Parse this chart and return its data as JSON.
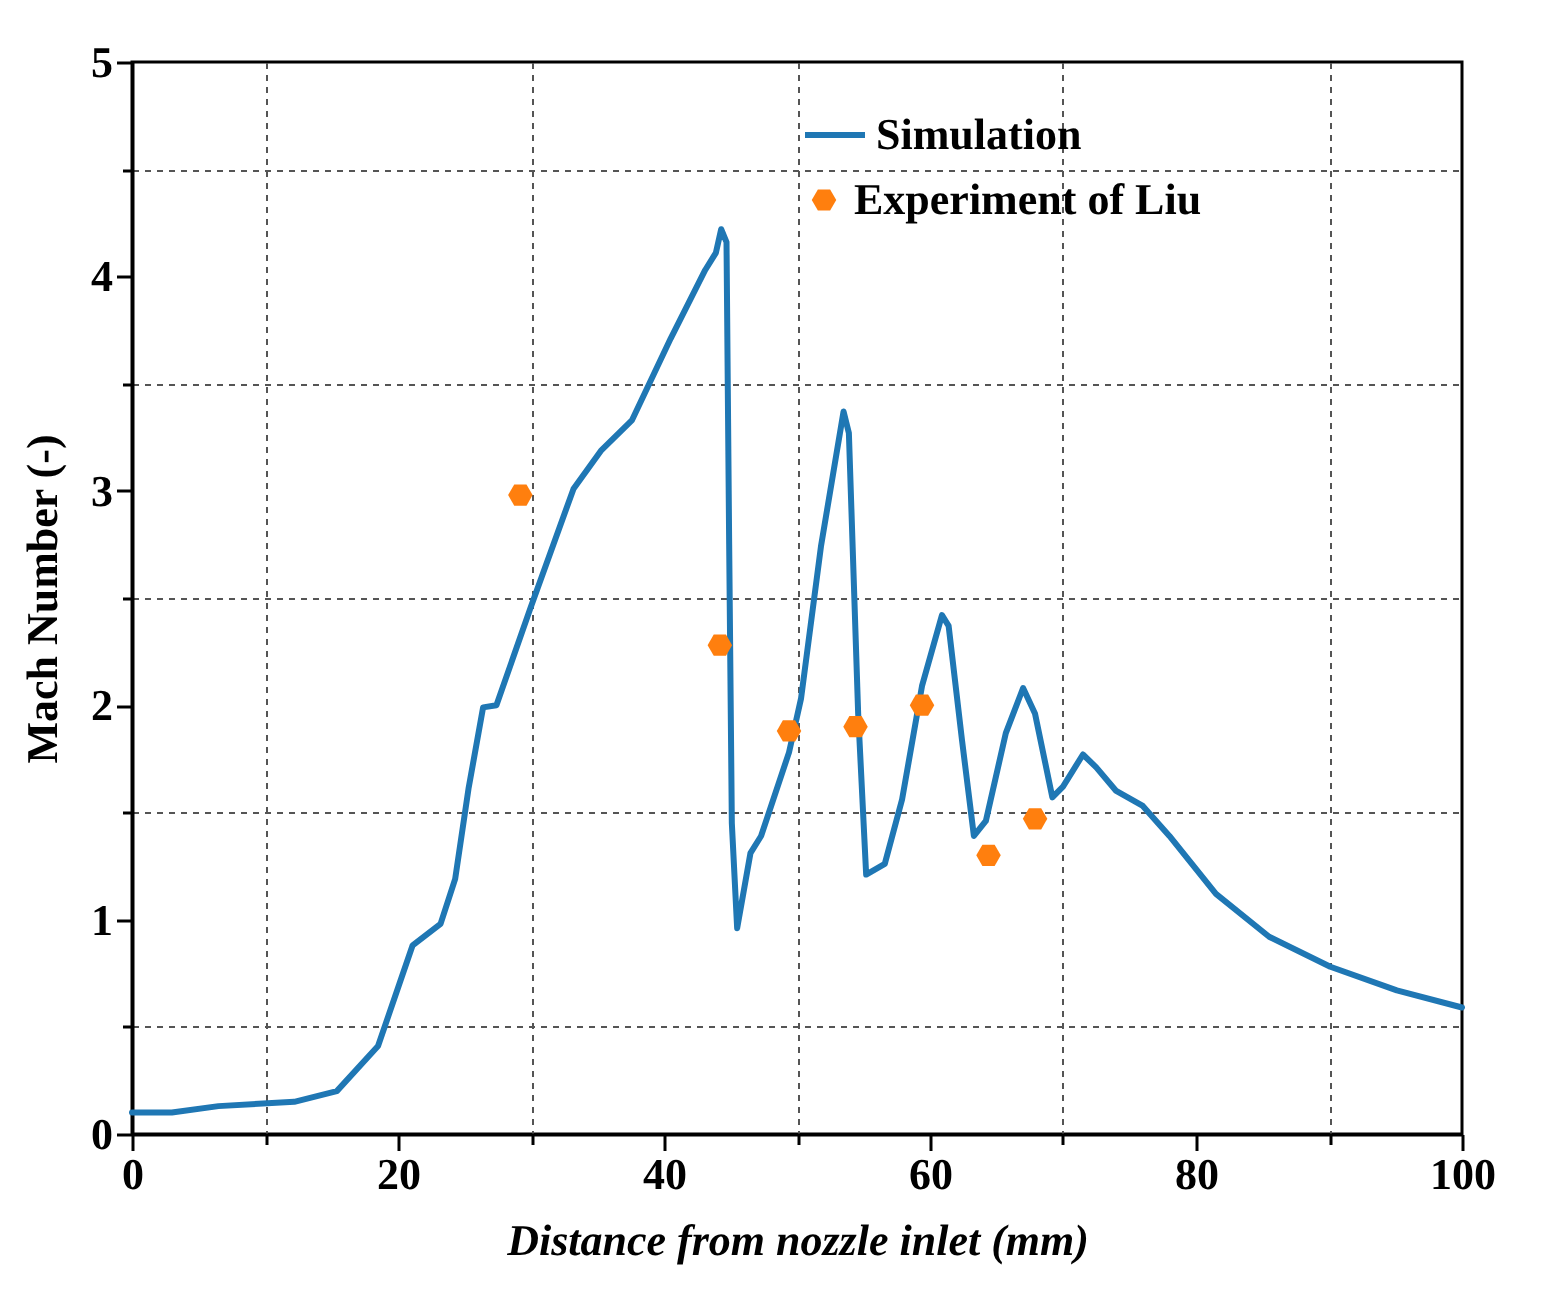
{
  "chart_data": {
    "type": "line",
    "xlabel": "Distance from nozzle inlet (mm)",
    "ylabel": "Mach Number (-)",
    "xlim": [
      0,
      100
    ],
    "ylim": [
      0,
      5
    ],
    "xticks": [
      0,
      {
        "value": 10,
        "label": null
      },
      20,
      {
        "value": 30,
        "label": null
      },
      40,
      {
        "value": 50,
        "label": null
      },
      60,
      {
        "value": 70,
        "label": null
      },
      80,
      {
        "value": 90,
        "label": null
      },
      100
    ],
    "yticks": [
      0,
      {
        "value": 0.5,
        "label": null
      },
      1,
      {
        "value": 1.5,
        "label": null
      },
      2,
      {
        "value": 2.5,
        "label": null
      },
      3,
      {
        "value": 3.5,
        "label": null
      },
      4,
      {
        "value": 4.5,
        "label": null
      },
      5
    ],
    "grid": true,
    "legend": "top right",
    "series": [
      {
        "name": "Simulation",
        "color": "#1f77b4",
        "line_style": "solid",
        "x": [
          0,
          3,
          6.5,
          12.2,
          15.4,
          18.5,
          20.1,
          21.1,
          23.2,
          24.3,
          25.3,
          26.4,
          27.4,
          30.0,
          33.2,
          35.3,
          37.6,
          40.5,
          43.1,
          43.9,
          44.3,
          44.7,
          44.9,
          45.1,
          45.5,
          46.5,
          47.3,
          49.4,
          50.3,
          51.8,
          53.5,
          53.9,
          54.6,
          55.2,
          56.6,
          57.9,
          59.4,
          60.9,
          61.4,
          62.4,
          63.3,
          64.2,
          65.7,
          67.0,
          67.9,
          69.2,
          70.0,
          71.5,
          72.5,
          74.0,
          76.0,
          78.0,
          81.5,
          85.5,
          90.1,
          95.1,
          100
        ],
        "values": [
          0.1,
          0.1,
          0.13,
          0.15,
          0.2,
          0.41,
          0.7,
          0.88,
          0.98,
          1.19,
          1.61,
          1.99,
          2.0,
          2.46,
          3.01,
          3.19,
          3.33,
          3.71,
          4.03,
          4.11,
          4.22,
          4.16,
          2.75,
          1.45,
          0.96,
          1.31,
          1.39,
          1.78,
          2.03,
          2.74,
          3.37,
          3.27,
          1.96,
          1.21,
          1.26,
          1.56,
          2.09,
          2.42,
          2.37,
          1.84,
          1.39,
          1.46,
          1.87,
          2.08,
          1.96,
          1.57,
          1.62,
          1.77,
          1.71,
          1.6,
          1.53,
          1.39,
          1.12,
          0.92,
          0.78,
          0.67,
          0.59
        ]
      },
      {
        "name": "Experiment of Liu",
        "type": "scatter",
        "color": "#ff7f0e",
        "x": [
          29.2,
          44.2,
          49.4,
          54.4,
          59.4,
          64.4,
          67.9
        ],
        "values": [
          2.98,
          2.28,
          1.88,
          1.9,
          2.0,
          1.3,
          1.47
        ]
      }
    ]
  }
}
